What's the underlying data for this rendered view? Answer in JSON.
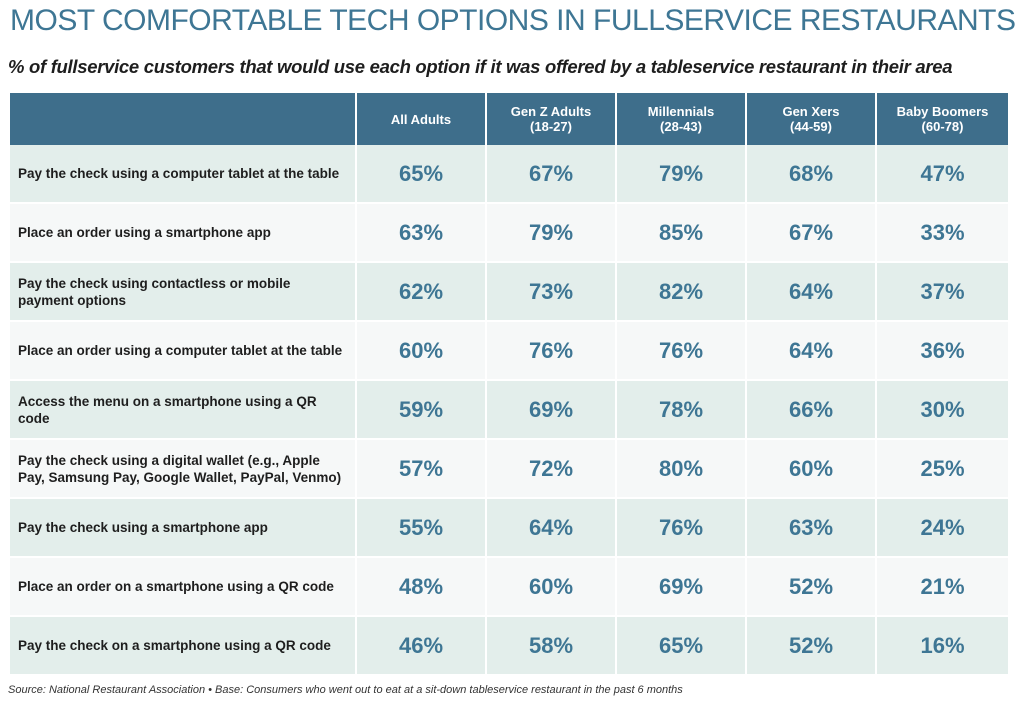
{
  "title": "MOST COMFORTABLE TECH OPTIONS IN FULLSERVICE RESTAURANTS",
  "subtitle": "% of fullservice customers that would use each option if it was offered by a tableservice restaurant in their area",
  "source": "Source: National Restaurant Association  •  Base: Consumers who went out to eat at a sit-down tableservice restaurant in the past 6 months",
  "colors": {
    "header_bg": "#3e6e8b",
    "title": "#3e7694",
    "value_text": "#3e7694",
    "row_odd": "#e3eeeb",
    "row_even": "#f6f8f8"
  },
  "chart_data": {
    "type": "table",
    "title": "MOST COMFORTABLE TECH OPTIONS IN FULLSERVICE RESTAURANTS",
    "subtitle": "% of fullservice customers that would use each option if it was offered by a tableservice restaurant in their area",
    "columns": [
      {
        "line1": "All Adults",
        "line2": ""
      },
      {
        "line1": "Gen Z Adults",
        "line2": "(18-27)"
      },
      {
        "line1": "Millennials",
        "line2": "(28-43)"
      },
      {
        "line1": "Gen Xers",
        "line2": "(44-59)"
      },
      {
        "line1": "Baby Boomers",
        "line2": "(60-78)"
      }
    ],
    "rows": [
      {
        "label": "Pay the check using a computer tablet at the table",
        "values": [
          "65%",
          "67%",
          "79%",
          "68%",
          "47%"
        ]
      },
      {
        "label": "Place an order using a smartphone app",
        "values": [
          "63%",
          "79%",
          "85%",
          "67%",
          "33%"
        ]
      },
      {
        "label": "Pay the check using contactless or mobile payment options",
        "values": [
          "62%",
          "73%",
          "82%",
          "64%",
          "37%"
        ]
      },
      {
        "label": "Place an order using a computer tablet at the table",
        "values": [
          "60%",
          "76%",
          "76%",
          "64%",
          "36%"
        ]
      },
      {
        "label": "Access the menu on a smartphone using a QR code",
        "values": [
          "59%",
          "69%",
          "78%",
          "66%",
          "30%"
        ]
      },
      {
        "label": "Pay the check using a digital wallet (e.g., Apple Pay, Samsung Pay, Google Wallet, PayPal, Venmo)",
        "values": [
          "57%",
          "72%",
          "80%",
          "60%",
          "25%"
        ]
      },
      {
        "label": "Pay the check using a smartphone app",
        "values": [
          "55%",
          "64%",
          "76%",
          "63%",
          "24%"
        ]
      },
      {
        "label": "Place an order on a smartphone using a QR code",
        "values": [
          "48%",
          "60%",
          "69%",
          "52%",
          "21%"
        ]
      },
      {
        "label": "Pay the check on a smartphone using a QR code",
        "values": [
          "46%",
          "58%",
          "65%",
          "52%",
          "16%"
        ]
      }
    ]
  }
}
